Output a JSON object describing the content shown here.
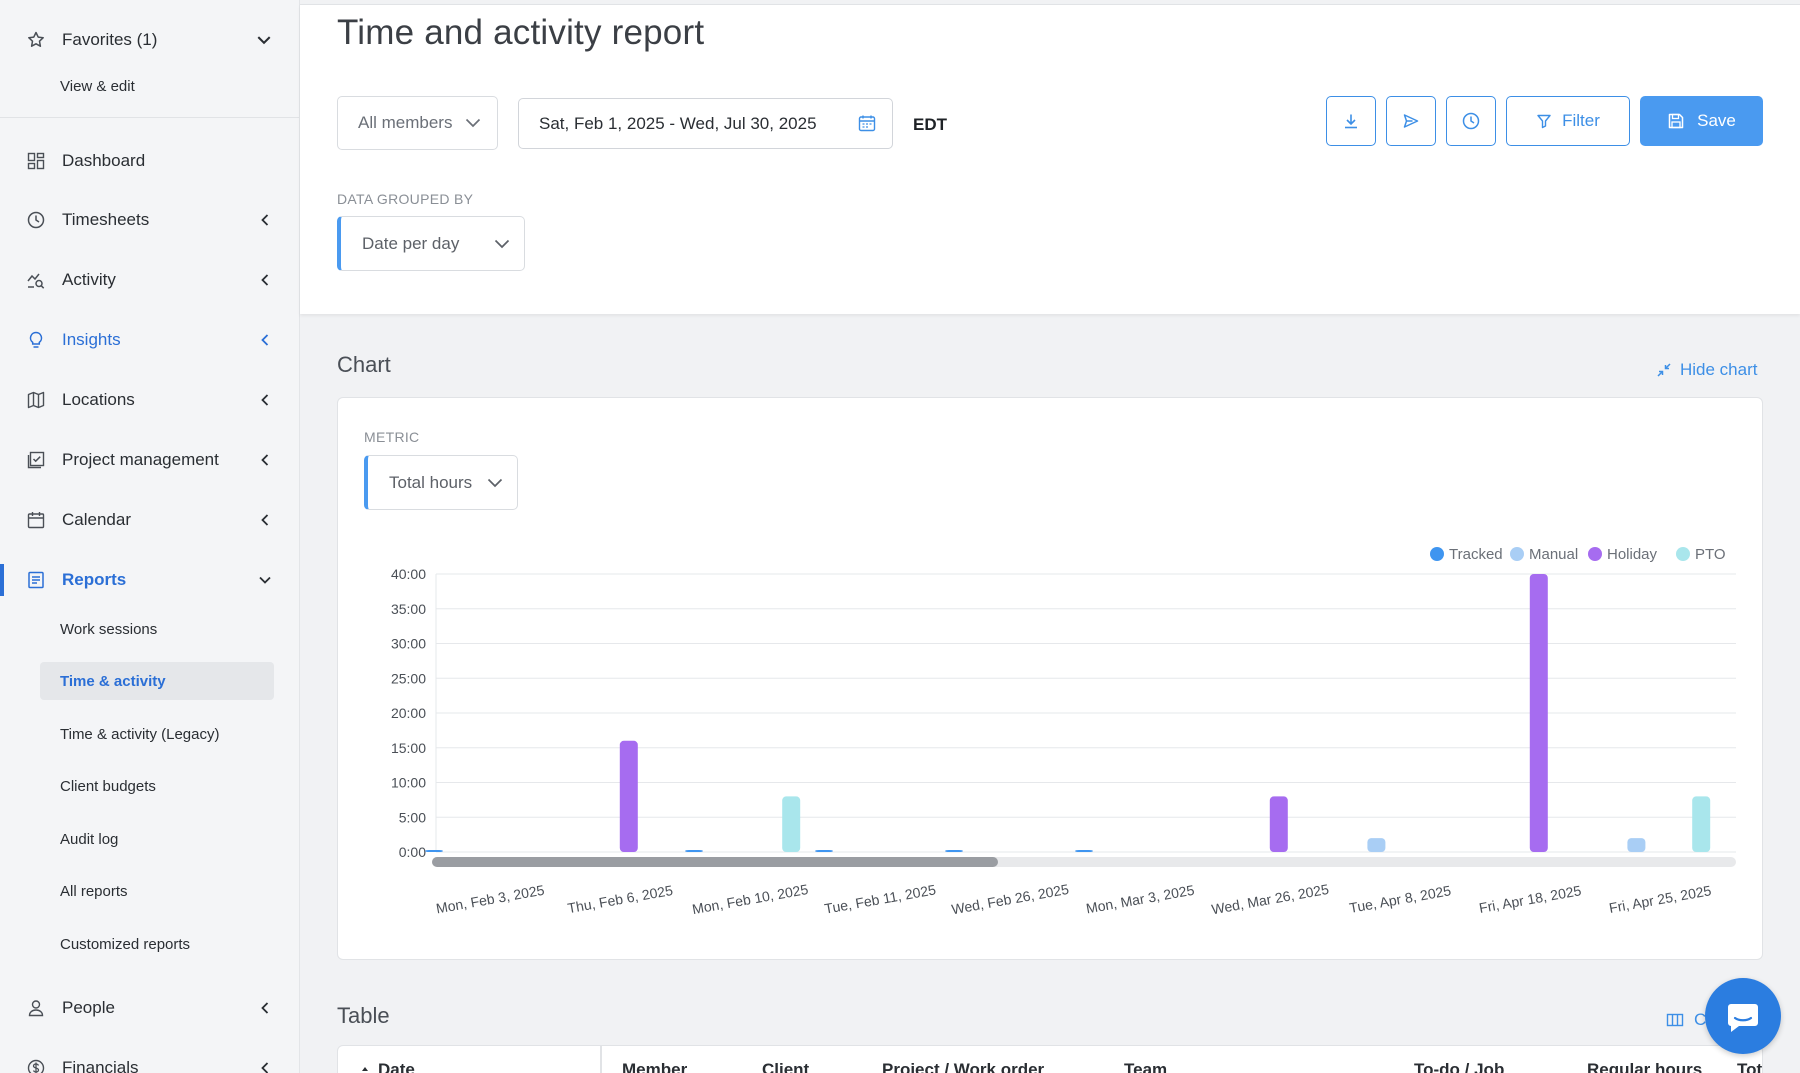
{
  "sidebar": {
    "favorites": {
      "label": "Favorites (1)",
      "sub": "View & edit"
    },
    "items": [
      {
        "label": "Dashboard"
      },
      {
        "label": "Timesheets"
      },
      {
        "label": "Activity"
      },
      {
        "label": "Insights"
      },
      {
        "label": "Locations"
      },
      {
        "label": "Project management"
      },
      {
        "label": "Calendar"
      },
      {
        "label": "Reports"
      },
      {
        "label": "People"
      },
      {
        "label": "Financials"
      }
    ],
    "reports_sub": [
      "Work sessions",
      "Time & activity",
      "Time & activity (Legacy)",
      "Client budgets",
      "Audit log",
      "All reports",
      "Customized reports"
    ],
    "selected_sub": "Time & activity"
  },
  "header": {
    "title": "Time and activity report",
    "members": "All members",
    "date_range": "Sat, Feb 1, 2025 - Wed, Jul 30, 2025",
    "timezone": "EDT",
    "filter_label": "Filter",
    "save_label": "Save",
    "grouped_label": "DATA GROUPED BY",
    "grouped_value": "Date per day"
  },
  "chart_section": {
    "title": "Chart",
    "hide_label": "Hide chart",
    "metric_label": "METRIC",
    "metric_value": "Total hours"
  },
  "chart_data": {
    "type": "bar",
    "legend_position": "top-right",
    "grid": true,
    "series_colors": {
      "Tracked": "#3f95f0",
      "Manual": "#a9cef5",
      "Holiday": "#a66cf0",
      "PTO": "#a9e6ec"
    },
    "legend": [
      "Tracked",
      "Manual",
      "Holiday",
      "PTO"
    ],
    "y_ticks": [
      "40:00",
      "35:00",
      "30:00",
      "25:00",
      "20:00",
      "15:00",
      "10:00",
      "5:00",
      "0:00"
    ],
    "ylim": [
      0,
      40
    ],
    "x_tick_labels": [
      "Mon, Feb 3, 2025",
      "Thu, Feb 6, 2025",
      "Mon, Feb 10, 2025",
      "Tue, Feb 11, 2025",
      "Wed, Feb 26, 2025",
      "Mon, Mar 3, 2025",
      "Wed, Mar 26, 2025",
      "Tue, Apr 8, 2025",
      "Fri, Apr 18, 2025",
      "Fri, Apr 25, 2025"
    ],
    "groups": [
      {
        "tracked": 0.1,
        "manual": 0,
        "holiday": 0,
        "pto": 0
      },
      {
        "tracked": 0,
        "manual": 0,
        "holiday": 16,
        "pto": 0
      },
      {
        "tracked": 0.1,
        "manual": 0,
        "holiday": 0,
        "pto": 8
      },
      {
        "tracked": 0.1,
        "manual": 0,
        "holiday": 0,
        "pto": 0
      },
      {
        "tracked": 0.1,
        "manual": 0,
        "holiday": 0,
        "pto": 0
      },
      {
        "tracked": 0.1,
        "manual": 0,
        "holiday": 0,
        "pto": 0
      },
      {
        "tracked": 0,
        "manual": 0,
        "holiday": 8,
        "pto": 0
      },
      {
        "tracked": 0,
        "manual": 2,
        "holiday": 0,
        "pto": 0
      },
      {
        "tracked": 0,
        "manual": 0,
        "holiday": 40,
        "pto": 0
      },
      {
        "tracked": 0,
        "manual": 2,
        "holiday": 0,
        "pto": 8
      }
    ]
  },
  "table_section": {
    "title": "Table",
    "columns_btn": "C",
    "headers": [
      "Date",
      "Member",
      "Client",
      "Project / Work order",
      "Team",
      "To-do / Job",
      "Regular hours",
      "Tot"
    ]
  }
}
